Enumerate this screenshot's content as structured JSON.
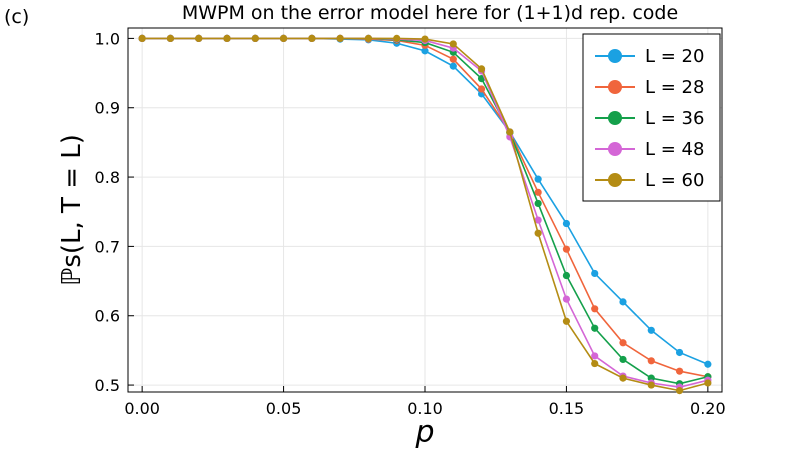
{
  "panel_label": "(c)",
  "chart_data": {
    "type": "line",
    "title": "MWPM on the error model here for (1+1)d rep. code",
    "xlabel": "p",
    "ylabel": "ℙs(L, T = L)",
    "xlim": [
      -0.005,
      0.205
    ],
    "ylim": [
      0.49,
      1.015
    ],
    "x_ticks": [
      "0.00",
      "0.05",
      "0.10",
      "0.15",
      "0.20"
    ],
    "y_ticks": [
      "0.5",
      "0.6",
      "0.7",
      "0.8",
      "0.9",
      "1.0"
    ],
    "grid": true,
    "legend_position": "top-right",
    "x": [
      0.0,
      0.01,
      0.02,
      0.03,
      0.04,
      0.05,
      0.06,
      0.07,
      0.08,
      0.09,
      0.1,
      0.11,
      0.12,
      0.13,
      0.14,
      0.15,
      0.16,
      0.17,
      0.18,
      0.19,
      0.2
    ],
    "series": [
      {
        "name": "L = 20",
        "color": "#1ba1e2",
        "values": [
          1.0,
          1.0,
          1.0,
          1.0,
          1.0,
          1.0,
          1.0,
          0.999,
          0.998,
          0.993,
          0.982,
          0.96,
          0.92,
          0.865,
          0.797,
          0.733,
          0.661,
          0.62,
          0.579,
          0.547,
          0.53
        ]
      },
      {
        "name": "L = 28",
        "color": "#f0653c",
        "values": [
          1.0,
          1.0,
          1.0,
          1.0,
          1.0,
          1.0,
          1.0,
          1.0,
          0.999,
          0.997,
          0.99,
          0.97,
          0.927,
          0.865,
          0.778,
          0.696,
          0.61,
          0.561,
          0.535,
          0.52,
          0.512
        ]
      },
      {
        "name": "L = 36",
        "color": "#14a04b",
        "values": [
          1.0,
          1.0,
          1.0,
          1.0,
          1.0,
          1.0,
          1.0,
          1.0,
          1.0,
          0.998,
          0.994,
          0.98,
          0.942,
          0.864,
          0.762,
          0.658,
          0.582,
          0.537,
          0.51,
          0.502,
          0.512
        ]
      },
      {
        "name": "L = 48",
        "color": "#d466d6",
        "values": [
          1.0,
          1.0,
          1.0,
          1.0,
          1.0,
          1.0,
          1.0,
          1.0,
          1.0,
          0.999,
          0.997,
          0.986,
          0.953,
          0.858,
          0.738,
          0.624,
          0.542,
          0.513,
          0.503,
          0.497,
          0.507
        ]
      },
      {
        "name": "L = 60",
        "color": "#b48c14",
        "values": [
          1.0,
          1.0,
          1.0,
          1.0,
          1.0,
          1.0,
          1.0,
          1.0,
          1.0,
          1.0,
          0.999,
          0.992,
          0.956,
          0.865,
          0.719,
          0.592,
          0.531,
          0.51,
          0.5,
          0.492,
          0.503
        ]
      }
    ]
  }
}
